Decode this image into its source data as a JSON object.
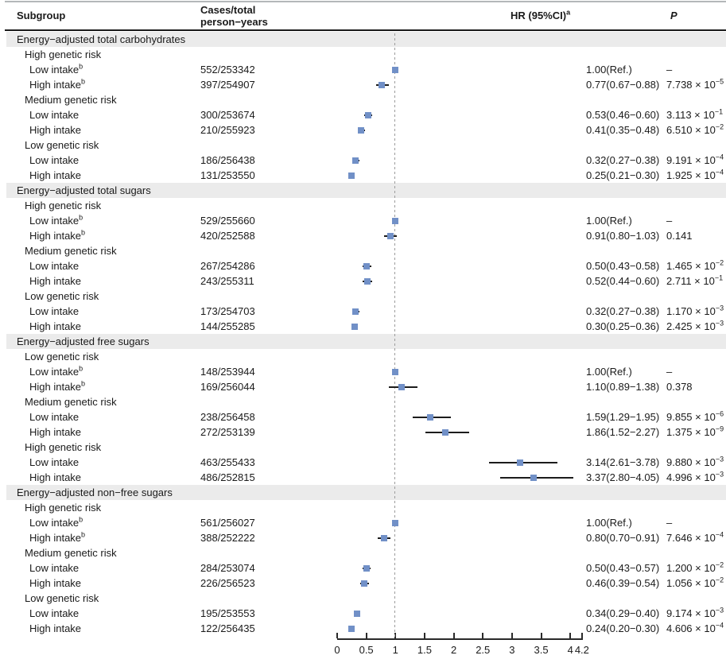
{
  "header": {
    "subgroup": "Subgroup",
    "cases_line1": "Cases/total",
    "cases_line2": "person−years",
    "hr": "HR (95%CI)",
    "hr_sup": "a",
    "p": "P"
  },
  "colors": {
    "marker": "#7190c7",
    "ci_line": "#1c1c1c",
    "section_bg": "#ebebeb",
    "reference_dash": "#9c9c9c"
  },
  "chart_data": {
    "type": "scatter",
    "subtype": "forest-plot",
    "title": "",
    "xlabel": "",
    "xlim": [
      0,
      4.2
    ],
    "x_tick_values": [
      0,
      0.5,
      1,
      1.5,
      2,
      2.5,
      3,
      3.5,
      4,
      4.2
    ],
    "x_tick_labels": [
      "0",
      "0.5",
      "1",
      "1.5",
      "2",
      "2.5",
      "3",
      "3.5",
      "4",
      "4.2"
    ],
    "reference_line_x": 1,
    "grid": false,
    "sections": [
      {
        "label": "Energy−adjusted total carbohydrates",
        "rows": [
          {
            "type": "group",
            "label": "High genetic risk"
          },
          {
            "type": "data",
            "label": "Low intake",
            "sup": "b",
            "cases": "552/253342",
            "hr": 1.0,
            "ci_low": null,
            "ci_high": null,
            "hr_text": "1.00(Ref.)",
            "p_text": "–",
            "p_exp": null
          },
          {
            "type": "data",
            "label": "High intake",
            "sup": "b",
            "cases": "397/254907",
            "hr": 0.77,
            "ci_low": 0.67,
            "ci_high": 0.88,
            "hr_text": "0.77(0.67−0.88)",
            "p_text": "7.738 × 10",
            "p_exp": "−5"
          },
          {
            "type": "group",
            "label": "Medium genetic risk"
          },
          {
            "type": "data",
            "label": "Low intake",
            "sup": null,
            "cases": "300/253674",
            "hr": 0.53,
            "ci_low": 0.46,
            "ci_high": 0.6,
            "hr_text": "0.53(0.46−0.60)",
            "p_text": "3.113 × 10",
            "p_exp": "−1"
          },
          {
            "type": "data",
            "label": "High intake",
            "sup": null,
            "cases": "210/255923",
            "hr": 0.41,
            "ci_low": 0.35,
            "ci_high": 0.48,
            "hr_text": "0.41(0.35−0.48)",
            "p_text": "6.510 × 10",
            "p_exp": "−2"
          },
          {
            "type": "group",
            "label": "Low genetic risk"
          },
          {
            "type": "data",
            "label": "Low intake",
            "sup": null,
            "cases": "186/256438",
            "hr": 0.32,
            "ci_low": 0.27,
            "ci_high": 0.38,
            "hr_text": "0.32(0.27−0.38)",
            "p_text": "9.191 × 10",
            "p_exp": "−4"
          },
          {
            "type": "data",
            "label": "High intake",
            "sup": null,
            "cases": "131/253550",
            "hr": 0.25,
            "ci_low": 0.21,
            "ci_high": 0.3,
            "hr_text": "0.25(0.21−0.30)",
            "p_text": "1.925 × 10",
            "p_exp": "−4"
          }
        ]
      },
      {
        "label": "Energy−adjusted total sugars",
        "rows": [
          {
            "type": "group",
            "label": "High genetic risk"
          },
          {
            "type": "data",
            "label": "Low intake",
            "sup": "b",
            "cases": "529/255660",
            "hr": 1.0,
            "ci_low": null,
            "ci_high": null,
            "hr_text": "1.00(Ref.)",
            "p_text": "–",
            "p_exp": null
          },
          {
            "type": "data",
            "label": "High intake",
            "sup": "b",
            "cases": "420/252588",
            "hr": 0.91,
            "ci_low": 0.8,
            "ci_high": 1.03,
            "hr_text": "0.91(0.80−1.03)",
            "p_text": "0.141",
            "p_exp": null
          },
          {
            "type": "group",
            "label": "Medium genetic risk"
          },
          {
            "type": "data",
            "label": "Low intake",
            "sup": null,
            "cases": "267/254286",
            "hr": 0.5,
            "ci_low": 0.43,
            "ci_high": 0.58,
            "hr_text": "0.50(0.43−0.58)",
            "p_text": "1.465 × 10",
            "p_exp": "−2"
          },
          {
            "type": "data",
            "label": "High intake",
            "sup": null,
            "cases": "243/255311",
            "hr": 0.52,
            "ci_low": 0.44,
            "ci_high": 0.6,
            "hr_text": "0.52(0.44−0.60)",
            "p_text": "2.711 × 10",
            "p_exp": "−1"
          },
          {
            "type": "group",
            "label": "Low genetic risk"
          },
          {
            "type": "data",
            "label": "Low intake",
            "sup": null,
            "cases": "173/254703",
            "hr": 0.32,
            "ci_low": 0.27,
            "ci_high": 0.38,
            "hr_text": "0.32(0.27−0.38)",
            "p_text": "1.170 × 10",
            "p_exp": "−3"
          },
          {
            "type": "data",
            "label": "High intake",
            "sup": null,
            "cases": "144/255285",
            "hr": 0.3,
            "ci_low": 0.25,
            "ci_high": 0.36,
            "hr_text": "0.30(0.25−0.36)",
            "p_text": "2.425 × 10",
            "p_exp": "−3"
          }
        ]
      },
      {
        "label": "Energy−adjusted free sugars",
        "rows": [
          {
            "type": "group",
            "label": "Low genetic risk"
          },
          {
            "type": "data",
            "label": "Low intake",
            "sup": "b",
            "cases": "148/253944",
            "hr": 1.0,
            "ci_low": null,
            "ci_high": null,
            "hr_text": "1.00(Ref.)",
            "p_text": "–",
            "p_exp": null
          },
          {
            "type": "data",
            "label": "High intake",
            "sup": "b",
            "cases": "169/256044",
            "hr": 1.1,
            "ci_low": 0.89,
            "ci_high": 1.38,
            "hr_text": "1.10(0.89−1.38)",
            "p_text": "0.378",
            "p_exp": null
          },
          {
            "type": "group",
            "label": "Medium genetic risk"
          },
          {
            "type": "data",
            "label": "Low intake",
            "sup": null,
            "cases": "238/256458",
            "hr": 1.59,
            "ci_low": 1.29,
            "ci_high": 1.95,
            "hr_text": "1.59(1.29−1.95)",
            "p_text": "9.855 × 10",
            "p_exp": "−6"
          },
          {
            "type": "data",
            "label": "High intake",
            "sup": null,
            "cases": "272/253139",
            "hr": 1.86,
            "ci_low": 1.52,
            "ci_high": 2.27,
            "hr_text": "1.86(1.52−2.27)",
            "p_text": "1.375 × 10",
            "p_exp": "−9"
          },
          {
            "type": "group",
            "label": "High genetic risk"
          },
          {
            "type": "data",
            "label": "Low intake",
            "sup": null,
            "cases": "463/255433",
            "hr": 3.14,
            "ci_low": 2.61,
            "ci_high": 3.78,
            "hr_text": "3.14(2.61−3.78)",
            "p_text": "9.880 × 10",
            "p_exp": "−3"
          },
          {
            "type": "data",
            "label": "High intake",
            "sup": null,
            "cases": "486/252815",
            "hr": 3.37,
            "ci_low": 2.8,
            "ci_high": 4.05,
            "hr_text": "3.37(2.80−4.05)",
            "p_text": "4.996 × 10",
            "p_exp": "−3"
          }
        ]
      },
      {
        "label": "Energy−adjusted non−free sugars",
        "rows": [
          {
            "type": "group",
            "label": "High genetic risk"
          },
          {
            "type": "data",
            "label": "Low intake",
            "sup": "b",
            "cases": "561/256027",
            "hr": 1.0,
            "ci_low": null,
            "ci_high": null,
            "hr_text": "1.00(Ref.)",
            "p_text": "–",
            "p_exp": null
          },
          {
            "type": "data",
            "label": "High intake",
            "sup": "b",
            "cases": "388/252222",
            "hr": 0.8,
            "ci_low": 0.7,
            "ci_high": 0.91,
            "hr_text": "0.80(0.70−0.91)",
            "p_text": "7.646 × 10",
            "p_exp": "−4"
          },
          {
            "type": "group",
            "label": "Medium genetic risk"
          },
          {
            "type": "data",
            "label": "Low intake",
            "sup": null,
            "cases": "284/253074",
            "hr": 0.5,
            "ci_low": 0.43,
            "ci_high": 0.57,
            "hr_text": "0.50(0.43−0.57)",
            "p_text": "1.200 × 10",
            "p_exp": "−2"
          },
          {
            "type": "data",
            "label": "High intake",
            "sup": null,
            "cases": "226/256523",
            "hr": 0.46,
            "ci_low": 0.39,
            "ci_high": 0.54,
            "hr_text": "0.46(0.39−0.54)",
            "p_text": "1.056 × 10",
            "p_exp": "−2"
          },
          {
            "type": "group",
            "label": "Low genetic risk"
          },
          {
            "type": "data",
            "label": "Low intake",
            "sup": null,
            "cases": "195/253553",
            "hr": 0.34,
            "ci_low": 0.29,
            "ci_high": 0.4,
            "hr_text": "0.34(0.29−0.40)",
            "p_text": "9.174 × 10",
            "p_exp": "−3"
          },
          {
            "type": "data",
            "label": "High intake",
            "sup": null,
            "cases": "122/256435",
            "hr": 0.24,
            "ci_low": 0.2,
            "ci_high": 0.3,
            "hr_text": "0.24(0.20−0.30)",
            "p_text": "4.606 × 10",
            "p_exp": "−4"
          }
        ]
      }
    ]
  }
}
